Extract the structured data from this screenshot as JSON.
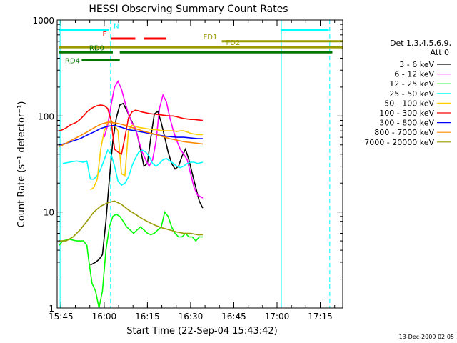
{
  "chart_data": {
    "type": "line",
    "title": "HESSI Observing Summary Count Rates",
    "xlabel": "Start Time (22-Sep-04 15:43:42)",
    "ylabel": "Count Rate (s⁻¹ detector⁻¹)",
    "xlim": [
      15.728,
      17.38
    ],
    "ylim": [
      1,
      1000
    ],
    "yscale": "log",
    "x_unit": "hours (UT)",
    "x_ticks": [
      {
        "x": 15.75,
        "label": "15:45"
      },
      {
        "x": 16.0,
        "label": "16:00"
      },
      {
        "x": 16.25,
        "label": "16:15"
      },
      {
        "x": 16.5,
        "label": "16:30"
      },
      {
        "x": 16.75,
        "label": "16:45"
      },
      {
        "x": 17.0,
        "label": "17:00"
      },
      {
        "x": 17.25,
        "label": "17:15"
      }
    ],
    "y_ticks": [
      {
        "y": 1,
        "label": "1"
      },
      {
        "y": 10,
        "label": "10"
      },
      {
        "y": 100,
        "label": "100"
      },
      {
        "y": 1000,
        "label": "1000"
      }
    ],
    "legend_header": [
      "Det 1,3,4,5,6,9,",
      "Att 0"
    ],
    "legend_position": "right",
    "series": [
      {
        "name": "3 - 6 keV",
        "color": "#000000",
        "x": [
          15.92,
          15.95,
          15.97,
          15.99,
          16.01,
          16.03,
          16.05,
          16.07,
          16.09,
          16.11,
          16.13,
          16.15,
          16.17,
          16.19,
          16.21,
          16.23,
          16.25,
          16.27,
          16.29,
          16.31,
          16.33,
          16.35,
          16.37,
          16.39,
          16.41,
          16.43,
          16.45,
          16.47,
          16.49,
          16.51,
          16.53,
          16.55,
          16.57
        ],
        "y": [
          2.8,
          3.0,
          3.2,
          3.6,
          8,
          22,
          55,
          95,
          130,
          135,
          115,
          95,
          80,
          65,
          45,
          30,
          32,
          60,
          105,
          112,
          85,
          60,
          42,
          32,
          28,
          30,
          38,
          45,
          35,
          25,
          18,
          13,
          11
        ]
      },
      {
        "name": "6 - 12 keV",
        "color": "#ff00ff",
        "x": [
          16.0,
          16.02,
          16.04,
          16.06,
          16.08,
          16.1,
          16.12,
          16.14,
          16.16,
          16.18,
          16.2,
          16.22,
          16.24,
          16.26,
          16.28,
          16.3,
          16.32,
          16.34,
          16.36,
          16.38,
          16.4,
          16.42,
          16.44,
          16.46,
          16.48,
          16.5,
          16.52,
          16.54,
          16.57
        ],
        "y": [
          60,
          80,
          130,
          200,
          230,
          190,
          140,
          105,
          85,
          75,
          55,
          42,
          35,
          30,
          35,
          55,
          120,
          165,
          140,
          95,
          70,
          55,
          45,
          40,
          35,
          25,
          18,
          15,
          14
        ]
      },
      {
        "name": "12 - 25 keV",
        "color": "#00ff00",
        "x": [
          15.74,
          15.76,
          15.8,
          15.84,
          15.88,
          15.9,
          15.91,
          15.93,
          15.95,
          15.97,
          15.99,
          16.01,
          16.03,
          16.05,
          16.07,
          16.09,
          16.11,
          16.13,
          16.15,
          16.17,
          16.19,
          16.21,
          16.23,
          16.25,
          16.27,
          16.29,
          16.31,
          16.33,
          16.35,
          16.37,
          16.39,
          16.41,
          16.43,
          16.45,
          16.47,
          16.49,
          16.51,
          16.53,
          16.55,
          16.57
        ],
        "y": [
          4.5,
          5,
          5.2,
          5,
          5,
          4.5,
          3.2,
          1.8,
          1.5,
          1.0,
          1.5,
          4,
          7,
          9,
          9.5,
          9,
          8,
          7,
          6.5,
          6,
          6.5,
          7,
          6.5,
          6,
          5.8,
          6,
          6.5,
          7,
          10,
          9,
          7,
          6,
          5.5,
          5.5,
          6,
          5.5,
          5.5,
          5,
          5.5,
          5.5
        ]
      },
      {
        "name": "25 - 50 keV",
        "color": "#00ffff",
        "x": [
          15.76,
          15.8,
          15.84,
          15.88,
          15.9,
          15.92,
          15.94,
          15.96,
          15.98,
          16.0,
          16.02,
          16.04,
          16.06,
          16.08,
          16.1,
          16.12,
          16.14,
          16.16,
          16.18,
          16.2,
          16.22,
          16.24,
          16.26,
          16.28,
          16.3,
          16.32,
          16.34,
          16.36,
          16.38,
          16.4,
          16.42,
          16.44,
          16.46,
          16.48,
          16.5,
          16.52,
          16.54,
          16.57
        ],
        "y": [
          32,
          33,
          34,
          33,
          34,
          22,
          22,
          24,
          28,
          35,
          44,
          40,
          30,
          21,
          19,
          20,
          23,
          30,
          36,
          42,
          44,
          42,
          38,
          32,
          30,
          32,
          35,
          36,
          34,
          32,
          30,
          29,
          30,
          32,
          33,
          33,
          32,
          33
        ]
      },
      {
        "name": "50 - 100 keV",
        "color": "#ffcc00",
        "x": [
          15.92,
          15.94,
          15.96,
          15.98,
          16.0,
          16.02,
          16.04,
          16.06,
          16.08,
          16.1,
          16.12,
          16.14,
          16.16,
          16.18,
          16.2,
          16.22,
          16.24,
          16.26,
          16.28,
          16.3,
          16.32,
          16.34,
          16.36,
          16.38,
          16.4,
          16.42,
          16.44,
          16.46,
          16.48,
          16.5,
          16.52,
          16.54,
          16.57
        ],
        "y": [
          17,
          18,
          22,
          45,
          70,
          85,
          90,
          80,
          70,
          25,
          24,
          70,
          80,
          78,
          76,
          75,
          74,
          73,
          72,
          72,
          71,
          70,
          70,
          70,
          70,
          69,
          70,
          70,
          68,
          66,
          65,
          64,
          64
        ]
      },
      {
        "name": "100 - 300 keV",
        "color": "#ff0000",
        "x": [
          15.74,
          15.76,
          15.78,
          15.8,
          15.82,
          15.84,
          15.86,
          15.88,
          15.9,
          15.92,
          15.94,
          15.96,
          15.98,
          16.0,
          16.02,
          16.04,
          16.06,
          16.08,
          16.1,
          16.12,
          16.14,
          16.16,
          16.18,
          16.2,
          16.22,
          16.24,
          16.26,
          16.28,
          16.3,
          16.32,
          16.34,
          16.36,
          16.38,
          16.4,
          16.42,
          16.44,
          16.46,
          16.48,
          16.5,
          16.52,
          16.54,
          16.57
        ],
        "y": [
          70,
          72,
          75,
          80,
          83,
          86,
          92,
          100,
          110,
          118,
          124,
          128,
          130,
          128,
          120,
          90,
          45,
          42,
          40,
          60,
          95,
          110,
          115,
          113,
          110,
          108,
          106,
          105,
          104,
          103,
          102,
          101,
          100,
          100,
          98,
          96,
          94,
          93,
          92,
          92,
          91,
          90
        ]
      },
      {
        "name": "300 - 800 keV",
        "color": "#0000ff",
        "x": [
          15.74,
          15.78,
          15.82,
          15.86,
          15.9,
          15.94,
          15.98,
          16.02,
          16.06,
          16.1,
          16.14,
          16.18,
          16.22,
          16.26,
          16.3,
          16.34,
          16.38,
          16.42,
          16.46,
          16.5,
          16.54,
          16.57
        ],
        "y": [
          50,
          52,
          55,
          58,
          63,
          68,
          74,
          78,
          80,
          76,
          72,
          70,
          68,
          66,
          64,
          62,
          61,
          60,
          60,
          59,
          58,
          58
        ]
      },
      {
        "name": "800 - 7000 keV",
        "color": "#ff8800",
        "x": [
          15.74,
          15.78,
          15.82,
          15.86,
          15.9,
          15.94,
          15.98,
          16.02,
          16.06,
          16.1,
          16.14,
          16.18,
          16.22,
          16.26,
          16.3,
          16.34,
          16.38,
          16.42,
          16.46,
          16.5,
          16.54,
          16.57
        ],
        "y": [
          48,
          52,
          57,
          62,
          68,
          75,
          82,
          86,
          85,
          82,
          78,
          74,
          70,
          67,
          64,
          61,
          58,
          56,
          54,
          53,
          52,
          51
        ]
      },
      {
        "name": "7000 - 20000 keV",
        "color": "#999900",
        "x": [
          15.74,
          15.78,
          15.82,
          15.86,
          15.9,
          15.94,
          15.98,
          16.02,
          16.06,
          16.1,
          16.14,
          16.18,
          16.22,
          16.26,
          16.3,
          16.34,
          16.38,
          16.42,
          16.46,
          16.5,
          16.54,
          16.57
        ],
        "y": [
          5,
          5,
          5.5,
          6.5,
          8,
          10,
          11.5,
          12.5,
          13,
          12,
          10.5,
          9.5,
          8.5,
          7.8,
          7.2,
          6.8,
          6.5,
          6.2,
          6,
          6,
          5.8,
          5.8
        ]
      }
    ],
    "flag_bars": [
      {
        "label": "N",
        "color": "#00ffff",
        "segments": [
          [
            15.74,
            16.03
          ],
          [
            17.02,
            17.3
          ]
        ],
        "y": 780
      },
      {
        "label": "F",
        "color": "#ff0000",
        "segments": [
          [
            16.04,
            16.18
          ],
          [
            16.23,
            16.36
          ]
        ],
        "y": 640
      },
      {
        "label": "FD1",
        "color": "#999900",
        "segments": [
          [
            16.68,
            17.38
          ]
        ],
        "y": 600
      },
      {
        "label": "FD2",
        "color": "#999900",
        "segments": [
          [
            15.74,
            17.38
          ]
        ],
        "y": 520
      },
      {
        "label": "RD0",
        "color": "#007700",
        "segments": [
          [
            15.74,
            16.05
          ],
          [
            16.09,
            17.32
          ]
        ],
        "y": 460
      },
      {
        "label": "RD4",
        "color": "#007700",
        "segments": [
          [
            15.87,
            16.09
          ]
        ],
        "y": 380
      }
    ],
    "vertical_lines": [
      {
        "x": 15.745,
        "color": "#00ffff",
        "style": "solid"
      },
      {
        "x": 16.037,
        "color": "#00ffff",
        "style": "dashed"
      },
      {
        "x": 17.025,
        "color": "#00ffff",
        "style": "solid"
      },
      {
        "x": 17.305,
        "color": "#00ffff",
        "style": "dashed"
      }
    ]
  },
  "footer_date": "13-Dec-2009 02:05"
}
